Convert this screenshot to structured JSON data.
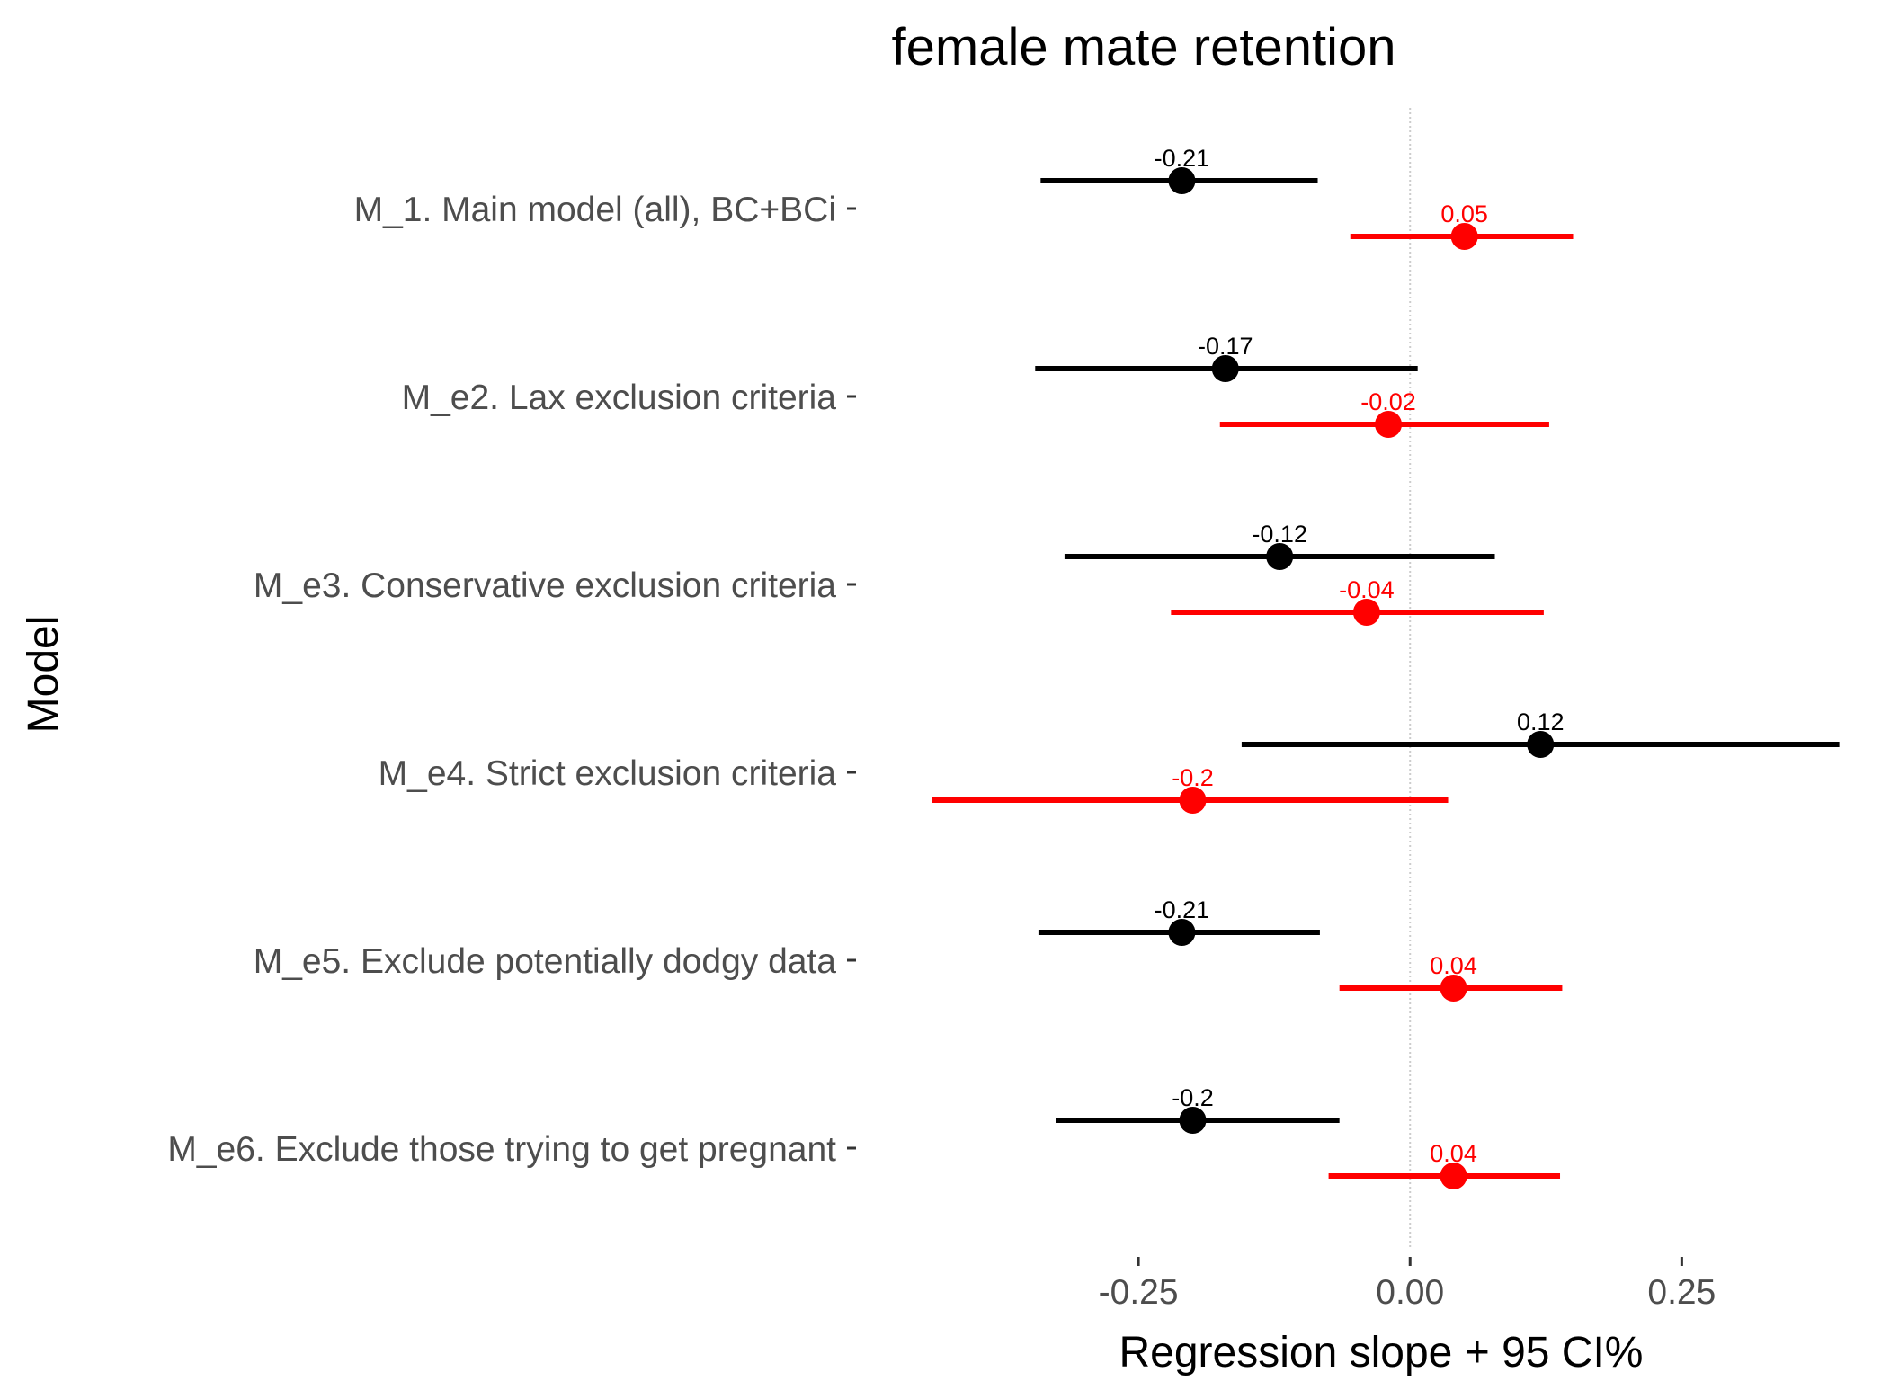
{
  "chart_data": {
    "type": "forest",
    "title": "female mate retention",
    "xlabel": "Regression slope + 95 CI%",
    "ylabel": "Model",
    "xlim": [
      -0.495,
      0.44
    ],
    "x_ticks": [
      -0.25,
      0.0,
      0.25
    ],
    "x_tick_labels": [
      "-0.25",
      "0.00",
      "0.25"
    ],
    "reference_line": 0,
    "grid": false,
    "legend": "none",
    "categories": [
      "M_1. Main model (all), BC+BCi",
      "M_e2. Lax exclusion criteria",
      "M_e3. Conservative exclusion criteria",
      "M_e4. Strict exclusion criteria",
      "M_e5. Exclude potentially dodgy data",
      "M_e6. Exclude those trying to get pregnant"
    ],
    "series": [
      {
        "color": "#000000",
        "values": [
          -0.21,
          -0.17,
          -0.12,
          0.12,
          -0.21,
          -0.2
        ],
        "lower": [
          -0.34,
          -0.345,
          -0.318,
          -0.155,
          -0.342,
          -0.326
        ],
        "upper": [
          -0.085,
          0.007,
          0.078,
          0.395,
          -0.083,
          -0.065
        ],
        "labels": [
          "-0.21",
          "-0.17",
          "-0.12",
          "0.12",
          "-0.21",
          "-0.2"
        ]
      },
      {
        "color": "#ff0000",
        "values": [
          0.05,
          -0.02,
          -0.04,
          -0.2,
          0.04,
          0.04
        ],
        "lower": [
          -0.055,
          -0.175,
          -0.22,
          -0.44,
          -0.065,
          -0.075
        ],
        "upper": [
          0.15,
          0.128,
          0.123,
          0.035,
          0.14,
          0.138
        ],
        "labels": [
          "0.05",
          "-0.02",
          "-0.04",
          "-0.2",
          "0.04",
          "0.04"
        ]
      }
    ]
  }
}
